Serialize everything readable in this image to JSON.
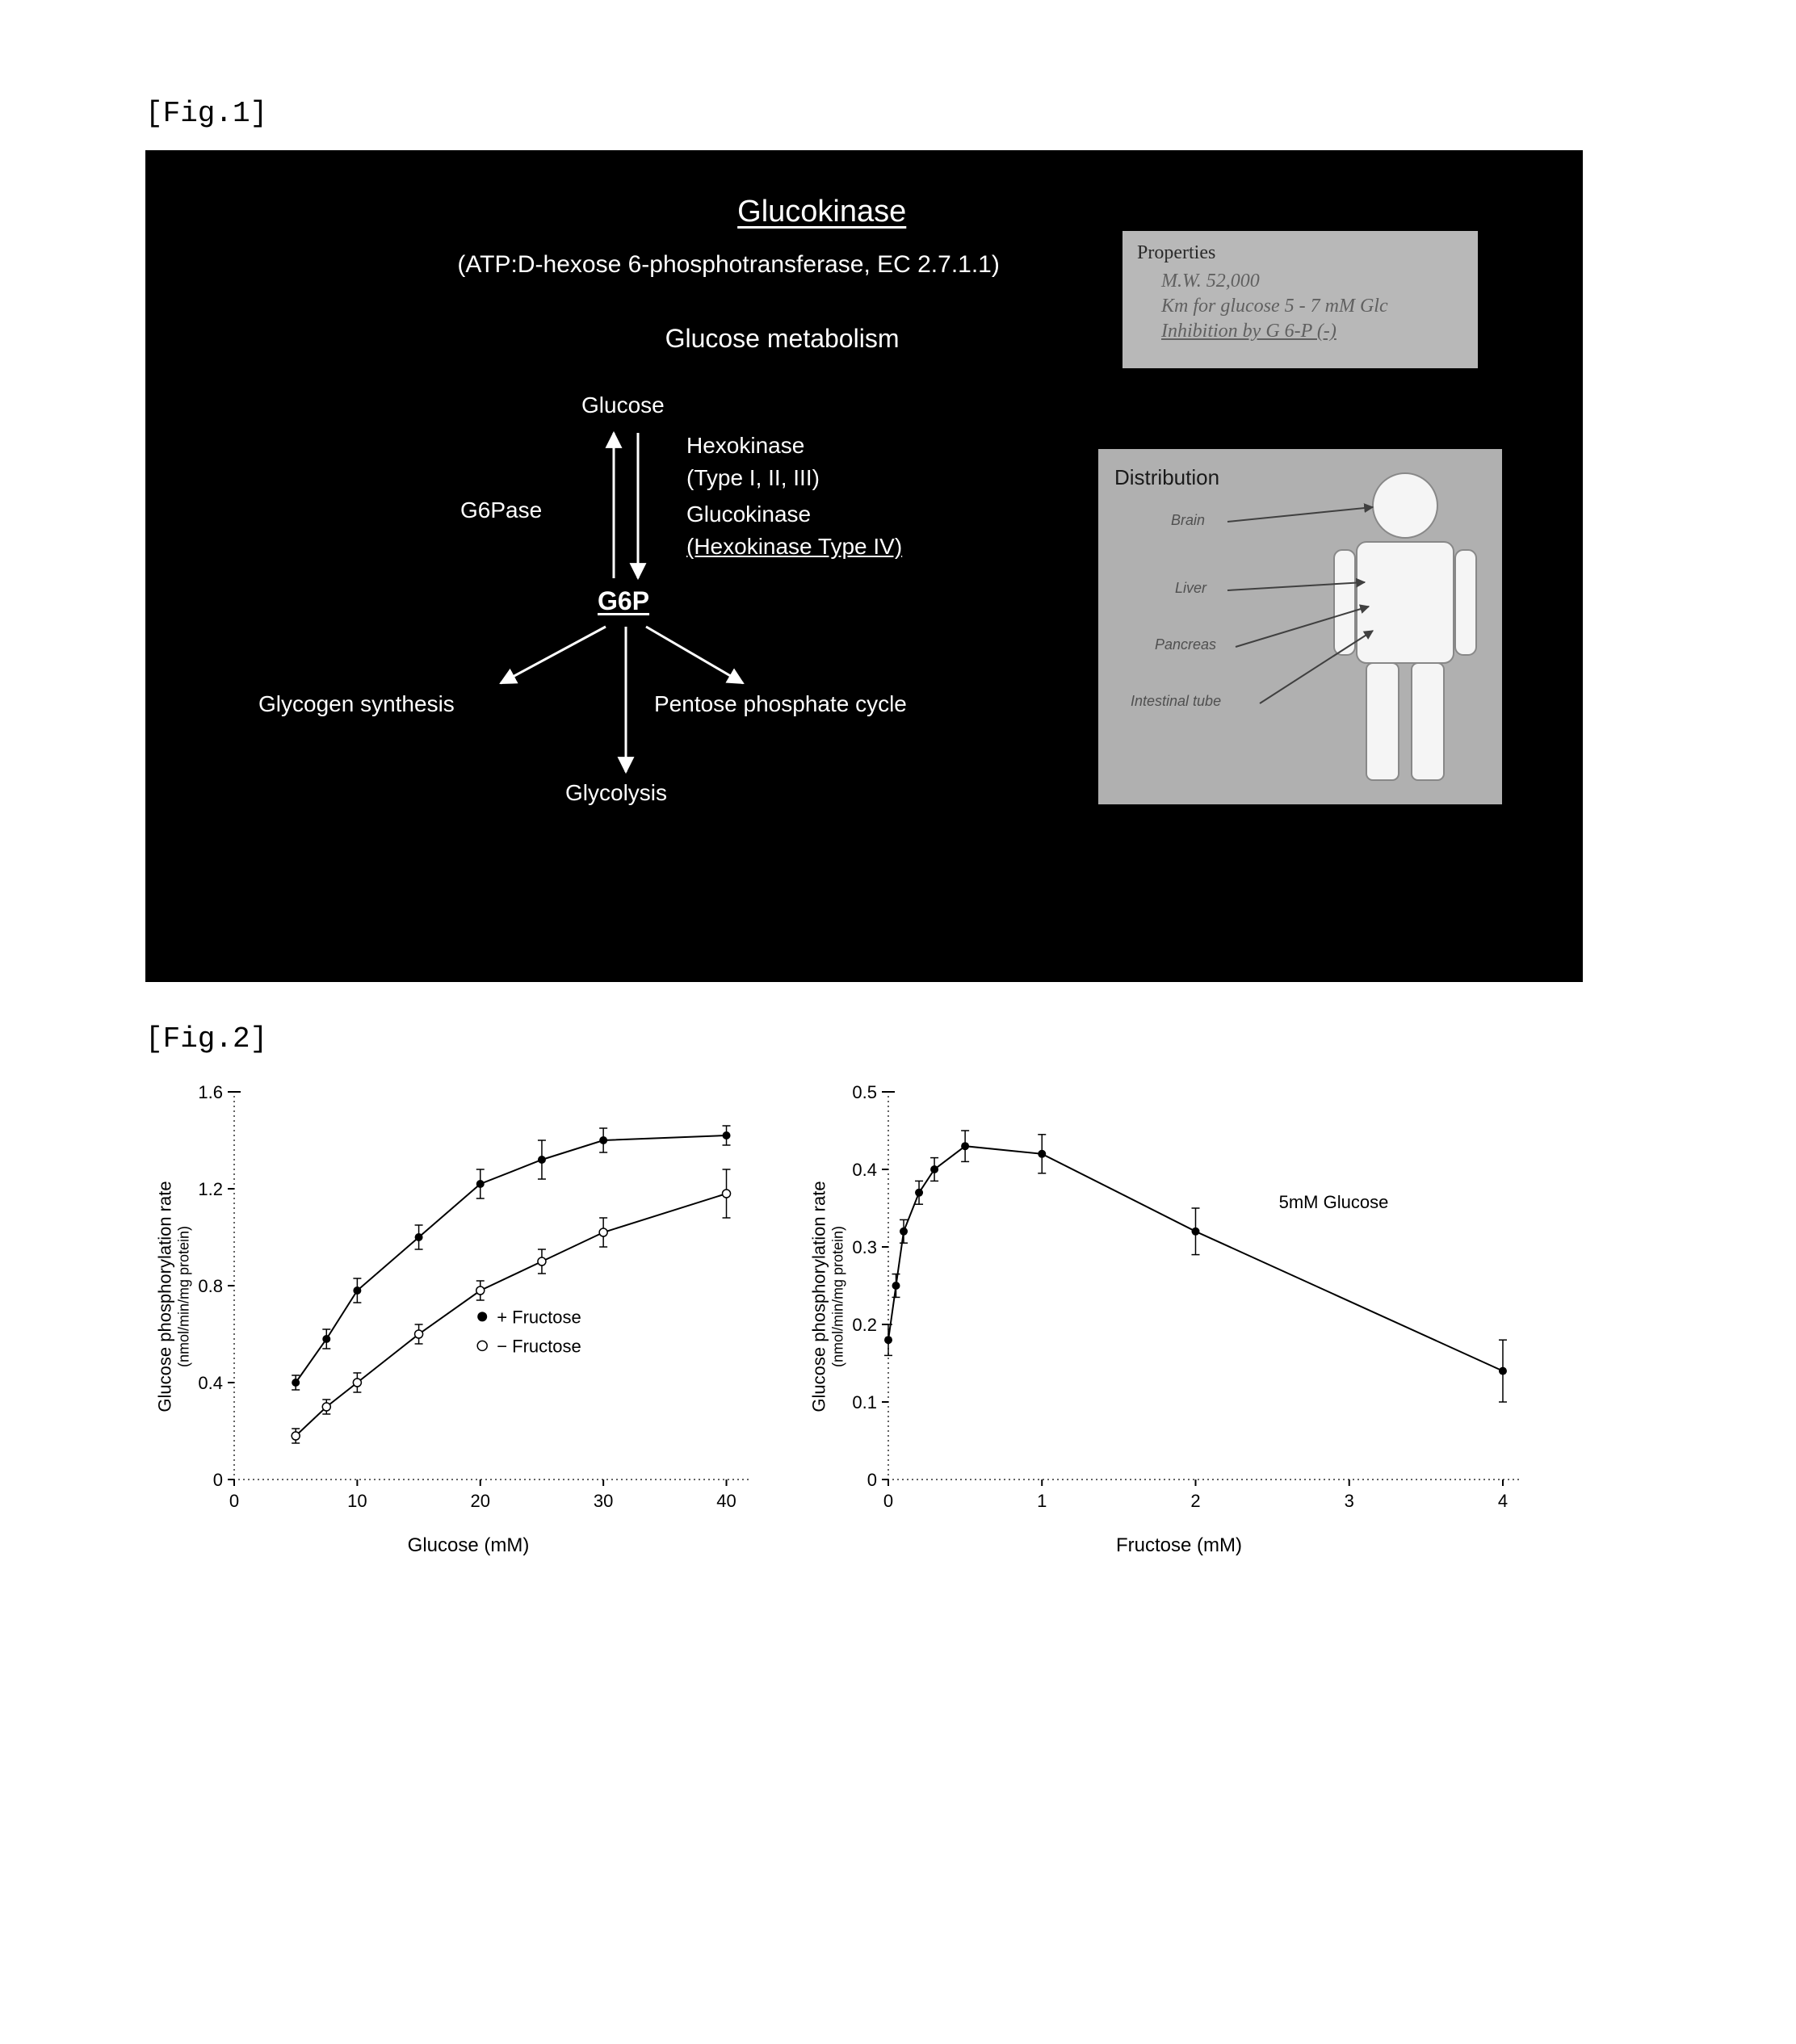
{
  "fig1": {
    "label": "[Fig.1]",
    "title": "Glucokinase",
    "subtitle": "(ATP:D-hexose 6-phosphotransferase, EC 2.7.1.1)",
    "metabolism": "Glucose metabolism",
    "pathway": {
      "glucose": "Glucose",
      "g6pase": "G6Pase",
      "hexokinase": "Hexokinase",
      "hexokinase_types": "(Type I, II, III)",
      "glucokinase": "Glucokinase",
      "glucokinase_type": "(Hexokinase Type IV)",
      "g6p": "G6P",
      "glycogen": "Glycogen synthesis",
      "pentose": "Pentose phosphate cycle",
      "glycolysis": "Glycolysis"
    },
    "properties": {
      "header": "Properties",
      "mw": "M.W.    52,000",
      "km": "Km for glucose  5 - 7 mM Glc",
      "inhibition": "Inhibition by G 6-P (-)"
    },
    "distribution": {
      "header": "Distribution",
      "brain": "Brain",
      "liver": "Liver",
      "pancreas": "Pancreas",
      "intestinal": "Intestinal tube"
    }
  },
  "fig2": {
    "label": "[Fig.2]",
    "left": {
      "type": "line",
      "ylabel": "Glucose phosphorylation rate",
      "ylabel_sub": "(nmol/min/mg protein)",
      "xlabel": "Glucose (mM)",
      "xlim": [
        0,
        42
      ],
      "ylim": [
        0,
        1.6
      ],
      "xticks": [
        0,
        10,
        20,
        30,
        40
      ],
      "yticks": [
        0,
        0.4,
        0.8,
        1.2,
        1.6
      ],
      "series": [
        {
          "name": "+ Fructose",
          "marker": "filled",
          "color": "#000000",
          "x": [
            5,
            7.5,
            10,
            15,
            20,
            25,
            30,
            40
          ],
          "y": [
            0.4,
            0.58,
            0.78,
            1.0,
            1.22,
            1.32,
            1.4,
            1.42
          ],
          "err": [
            0.03,
            0.04,
            0.05,
            0.05,
            0.06,
            0.08,
            0.05,
            0.04
          ]
        },
        {
          "name": "− Fructose",
          "marker": "open",
          "color": "#000000",
          "x": [
            5,
            7.5,
            10,
            15,
            20,
            25,
            30,
            40
          ],
          "y": [
            0.18,
            0.3,
            0.4,
            0.6,
            0.78,
            0.9,
            1.02,
            1.18
          ],
          "err": [
            0.03,
            0.03,
            0.04,
            0.04,
            0.04,
            0.05,
            0.06,
            0.1
          ]
        }
      ],
      "legend_items": [
        "+ Fructose",
        "− Fructose"
      ]
    },
    "right": {
      "type": "line",
      "ylabel": "Glucose phosphorylation rate",
      "ylabel_sub": "(nmol/min/mg protein)",
      "xlabel": "Fructose (mM)",
      "annotation": "5mM Glucose",
      "xlim": [
        0,
        4.1
      ],
      "ylim": [
        0,
        0.5
      ],
      "xticks": [
        0,
        1.0,
        2.0,
        3.0,
        4.0
      ],
      "yticks": [
        0,
        0.1,
        0.2,
        0.3,
        0.4,
        0.5
      ],
      "series": [
        {
          "name": "5mM Glucose",
          "marker": "filled",
          "color": "#000000",
          "x": [
            0,
            0.05,
            0.1,
            0.2,
            0.3,
            0.5,
            1.0,
            2.0,
            4.0
          ],
          "y": [
            0.18,
            0.25,
            0.32,
            0.37,
            0.4,
            0.43,
            0.42,
            0.32,
            0.14
          ],
          "err": [
            0.02,
            0.015,
            0.015,
            0.015,
            0.015,
            0.02,
            0.025,
            0.03,
            0.04
          ]
        }
      ]
    },
    "colors": {
      "line": "#000000",
      "axis": "#000000",
      "dotaxis": "#444444",
      "bg": "#ffffff"
    },
    "marker_radius": 5,
    "line_width": 2
  }
}
